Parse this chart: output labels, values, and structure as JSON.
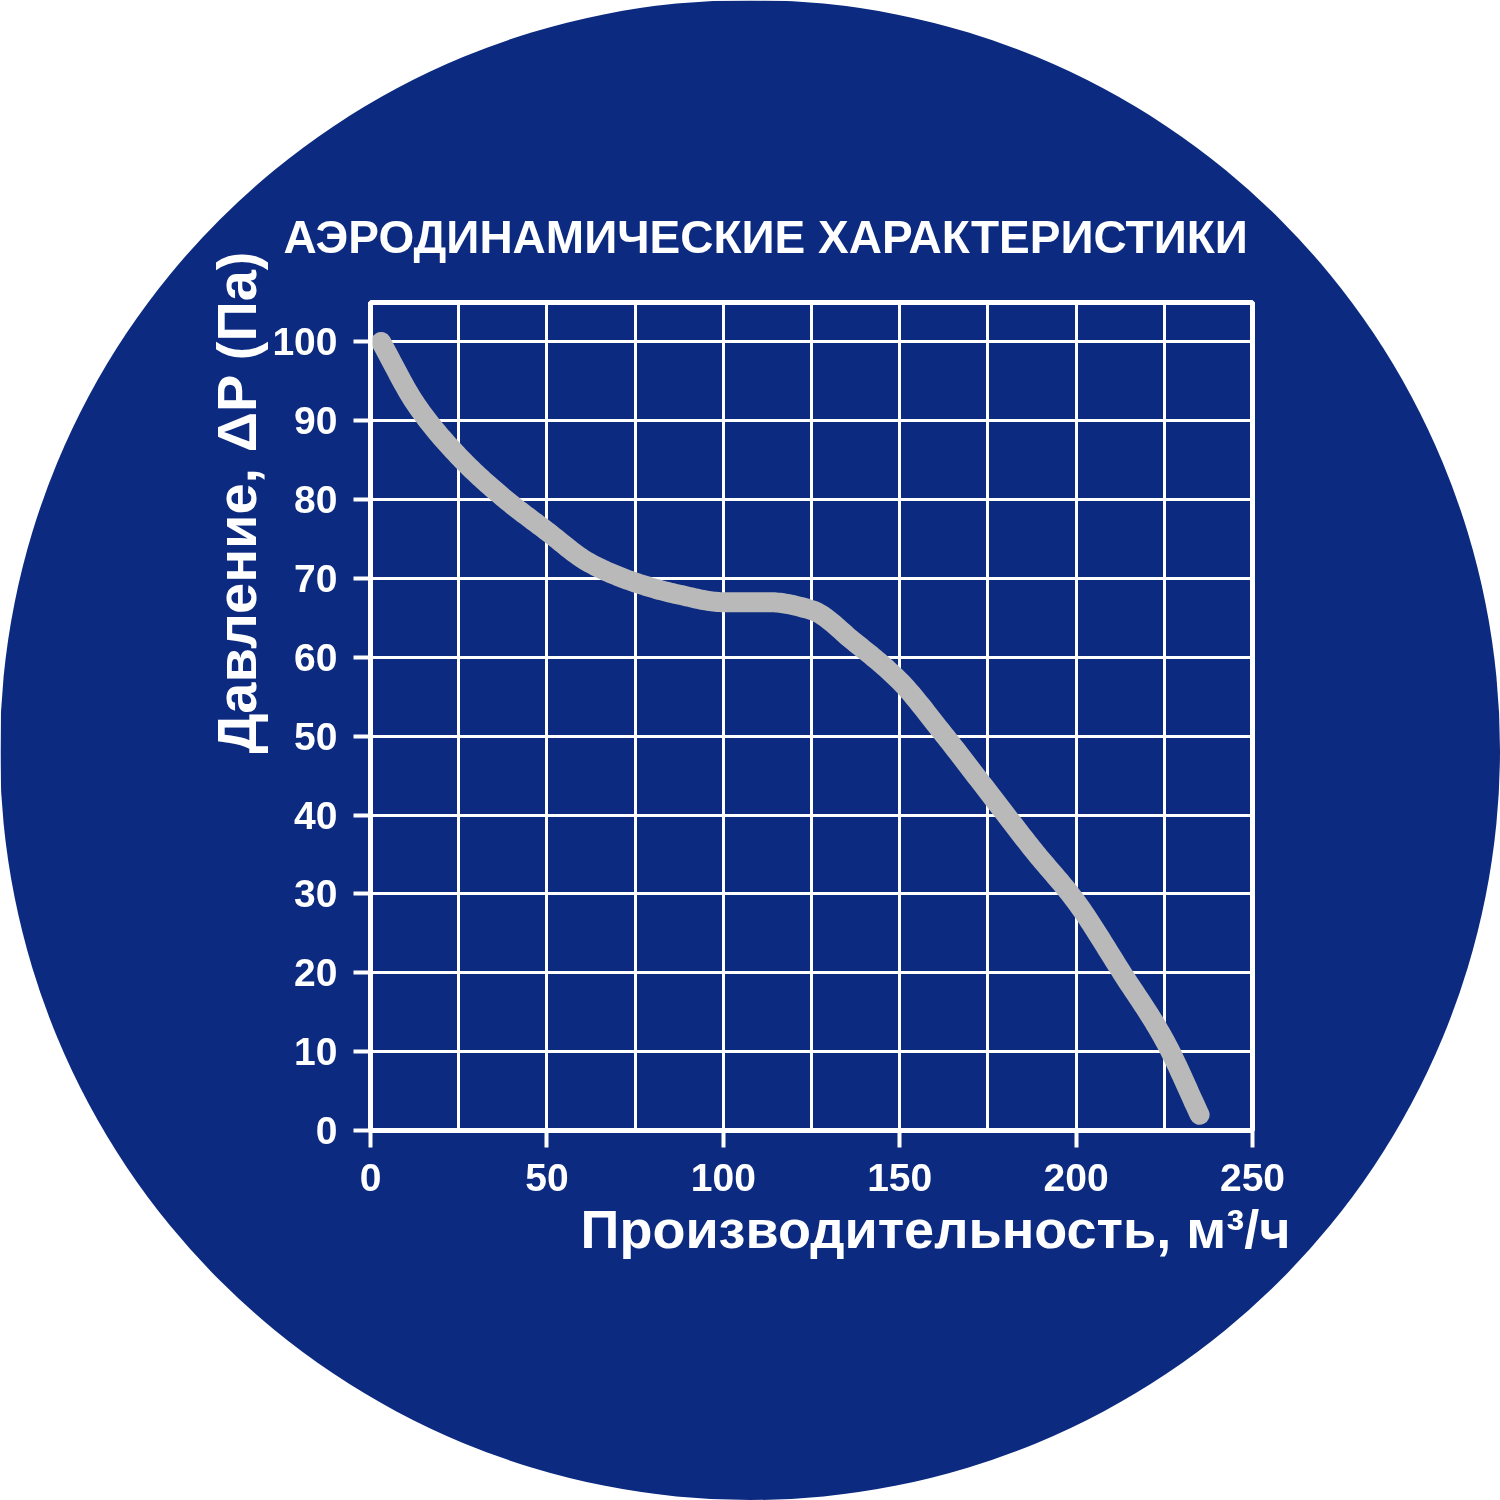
{
  "chart_data": {
    "type": "line",
    "title": "АЭРОДИНАМИЧЕСКИЕ ХАРАКТЕРИСТИКИ",
    "xlabel": "Производительность, м³/ч",
    "ylabel": "Давление, ΔP (Па)",
    "x": [
      3,
      13,
      25,
      37,
      50,
      62,
      75,
      87,
      100,
      113,
      125,
      137,
      150,
      162,
      175,
      188,
      200,
      213,
      225,
      235
    ],
    "series": [
      {
        "color": "#b9b9b9",
        "values": [
          100,
          92,
          85.5,
          80.5,
          76,
          72,
          69.5,
          68,
          67,
          67,
          66,
          62,
          57,
          50.5,
          43,
          35.5,
          29,
          20,
          11.5,
          2
        ]
      }
    ],
    "xlim": [
      0,
      250
    ],
    "ylim": [
      0,
      105
    ],
    "xticks": [
      0,
      {
        "value": 25,
        "label": null
      },
      50,
      {
        "value": 75,
        "label": null
      },
      100,
      {
        "value": 125,
        "label": null
      },
      150,
      {
        "value": 175,
        "label": null
      },
      200,
      {
        "value": 225,
        "label": null
      },
      250
    ],
    "yticks": [
      0,
      10,
      20,
      30,
      40,
      50,
      60,
      70,
      80,
      90,
      100
    ],
    "grid": true,
    "line_style": "solid"
  }
}
